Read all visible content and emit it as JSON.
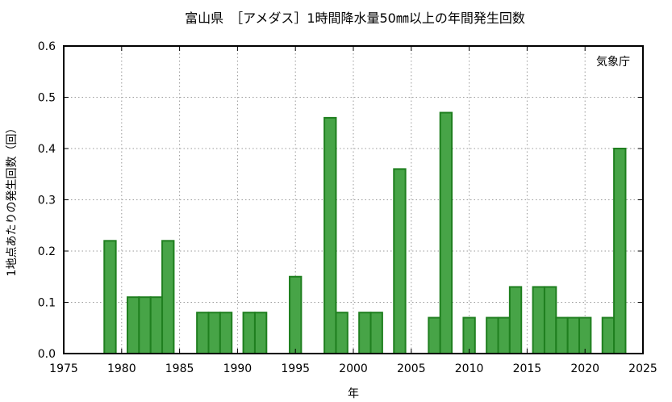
{
  "chart_data": {
    "type": "bar",
    "title": "富山県　［アメダス］1時間降水量50㎜以上の年間発生回数",
    "xlabel": "年",
    "ylabel": "1地点あたりの発生回数（回）",
    "source": "気象庁",
    "xlim": [
      1975,
      2025
    ],
    "ylim": [
      0,
      0.6
    ],
    "xticks": [
      1975,
      1980,
      1985,
      1990,
      1995,
      2000,
      2005,
      2010,
      2015,
      2020,
      2025
    ],
    "yticks": [
      "0.0",
      "0.1",
      "0.2",
      "0.3",
      "0.4",
      "0.5",
      "0.6"
    ],
    "grid": true,
    "colors": {
      "bar_fill": "#47a447",
      "bar_stroke": "#1f7f1f"
    },
    "x": [
      1979,
      1981,
      1982,
      1983,
      1984,
      1987,
      1988,
      1989,
      1991,
      1992,
      1995,
      1998,
      1999,
      2001,
      2002,
      2004,
      2007,
      2008,
      2010,
      2012,
      2013,
      2014,
      2016,
      2017,
      2018,
      2019,
      2020,
      2022,
      2023
    ],
    "values": [
      0.22,
      0.11,
      0.11,
      0.11,
      0.22,
      0.08,
      0.08,
      0.08,
      0.08,
      0.08,
      0.15,
      0.46,
      0.08,
      0.08,
      0.08,
      0.36,
      0.07,
      0.47,
      0.07,
      0.07,
      0.07,
      0.13,
      0.13,
      0.13,
      0.07,
      0.07,
      0.07,
      0.07,
      0.4
    ]
  }
}
